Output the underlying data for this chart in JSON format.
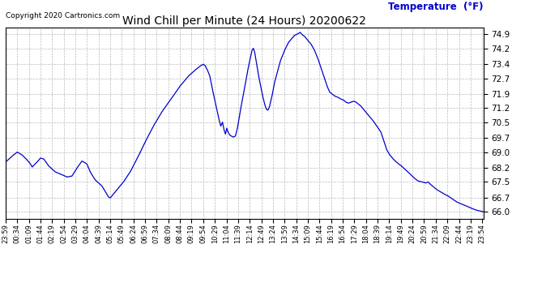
{
  "title": "Wind Chill per Minute (24 Hours) 20200622",
  "copyright_text": "Copyright 2020 Cartronics.com",
  "legend_label": "Temperature  (°F)",
  "background_color": "#ffffff",
  "line_color": "#0000cc",
  "title_color": "#000000",
  "legend_color": "#0000cc",
  "copyright_color": "#000000",
  "ylim": [
    65.65,
    75.25
  ],
  "yticks": [
    66.0,
    66.7,
    67.5,
    68.2,
    69.0,
    69.7,
    70.5,
    71.2,
    71.9,
    72.7,
    73.4,
    74.2,
    74.9
  ],
  "xtick_labels": [
    "23:59",
    "00:34",
    "01:09",
    "01:44",
    "02:19",
    "02:54",
    "03:29",
    "04:04",
    "04:39",
    "05:14",
    "05:49",
    "06:24",
    "06:59",
    "07:34",
    "08:09",
    "08:44",
    "09:19",
    "09:54",
    "10:29",
    "11:04",
    "11:39",
    "12:14",
    "12:49",
    "13:24",
    "13:59",
    "14:34",
    "15:09",
    "15:44",
    "16:19",
    "16:54",
    "17:29",
    "18:04",
    "18:39",
    "19:14",
    "19:49",
    "20:24",
    "20:59",
    "21:34",
    "22:09",
    "22:44",
    "23:19",
    "23:54"
  ],
  "grid_color": "#bbbbbb",
  "grid_style": "--",
  "grid_linewidth": 0.5,
  "waypoints": [
    [
      0,
      68.5
    ],
    [
      20,
      68.8
    ],
    [
      35,
      69.0
    ],
    [
      50,
      68.85
    ],
    [
      65,
      68.6
    ],
    [
      75,
      68.4
    ],
    [
      80,
      68.25
    ],
    [
      95,
      68.5
    ],
    [
      105,
      68.7
    ],
    [
      115,
      68.65
    ],
    [
      130,
      68.3
    ],
    [
      150,
      68.0
    ],
    [
      165,
      67.9
    ],
    [
      185,
      67.75
    ],
    [
      200,
      67.8
    ],
    [
      215,
      68.2
    ],
    [
      230,
      68.55
    ],
    [
      245,
      68.4
    ],
    [
      255,
      68.0
    ],
    [
      270,
      67.6
    ],
    [
      290,
      67.3
    ],
    [
      310,
      66.75
    ],
    [
      315,
      66.7
    ],
    [
      330,
      67.0
    ],
    [
      355,
      67.5
    ],
    [
      375,
      68.0
    ],
    [
      400,
      68.8
    ],
    [
      420,
      69.5
    ],
    [
      445,
      70.3
    ],
    [
      470,
      71.0
    ],
    [
      500,
      71.7
    ],
    [
      525,
      72.3
    ],
    [
      550,
      72.8
    ],
    [
      570,
      73.1
    ],
    [
      585,
      73.3
    ],
    [
      595,
      73.4
    ],
    [
      600,
      73.35
    ],
    [
      608,
      73.1
    ],
    [
      615,
      72.8
    ],
    [
      622,
      72.2
    ],
    [
      630,
      71.6
    ],
    [
      638,
      71.0
    ],
    [
      643,
      70.6
    ],
    [
      648,
      70.3
    ],
    [
      653,
      70.5
    ],
    [
      658,
      70.1
    ],
    [
      662,
      69.9
    ],
    [
      666,
      70.2
    ],
    [
      670,
      70.0
    ],
    [
      675,
      69.85
    ],
    [
      680,
      69.8
    ],
    [
      685,
      69.75
    ],
    [
      692,
      69.8
    ],
    [
      698,
      70.2
    ],
    [
      706,
      71.0
    ],
    [
      715,
      71.8
    ],
    [
      722,
      72.4
    ],
    [
      728,
      73.0
    ],
    [
      734,
      73.5
    ],
    [
      738,
      73.8
    ],
    [
      742,
      74.1
    ],
    [
      746,
      74.2
    ],
    [
      750,
      74.0
    ],
    [
      754,
      73.6
    ],
    [
      758,
      73.2
    ],
    [
      762,
      72.8
    ],
    [
      768,
      72.3
    ],
    [
      774,
      71.8
    ],
    [
      780,
      71.4
    ],
    [
      785,
      71.15
    ],
    [
      790,
      71.1
    ],
    [
      795,
      71.3
    ],
    [
      802,
      71.8
    ],
    [
      810,
      72.5
    ],
    [
      818,
      73.0
    ],
    [
      828,
      73.6
    ],
    [
      840,
      74.1
    ],
    [
      852,
      74.5
    ],
    [
      862,
      74.7
    ],
    [
      870,
      74.85
    ],
    [
      877,
      74.9
    ],
    [
      882,
      74.95
    ],
    [
      887,
      75.0
    ],
    [
      892,
      74.9
    ],
    [
      900,
      74.8
    ],
    [
      910,
      74.6
    ],
    [
      920,
      74.4
    ],
    [
      930,
      74.1
    ],
    [
      940,
      73.7
    ],
    [
      950,
      73.2
    ],
    [
      960,
      72.7
    ],
    [
      968,
      72.3
    ],
    [
      976,
      72.0
    ],
    [
      984,
      71.9
    ],
    [
      992,
      71.8
    ],
    [
      1000,
      71.75
    ],
    [
      1010,
      71.65
    ],
    [
      1018,
      71.6
    ],
    [
      1025,
      71.5
    ],
    [
      1032,
      71.45
    ],
    [
      1040,
      71.5
    ],
    [
      1048,
      71.55
    ],
    [
      1055,
      71.5
    ],
    [
      1063,
      71.4
    ],
    [
      1070,
      71.3
    ],
    [
      1080,
      71.1
    ],
    [
      1092,
      70.85
    ],
    [
      1105,
      70.6
    ],
    [
      1118,
      70.3
    ],
    [
      1130,
      70.0
    ],
    [
      1140,
      69.5
    ],
    [
      1148,
      69.1
    ],
    [
      1155,
      68.9
    ],
    [
      1162,
      68.75
    ],
    [
      1170,
      68.6
    ],
    [
      1180,
      68.45
    ],
    [
      1192,
      68.3
    ],
    [
      1205,
      68.1
    ],
    [
      1218,
      67.9
    ],
    [
      1230,
      67.7
    ],
    [
      1242,
      67.55
    ],
    [
      1255,
      67.5
    ],
    [
      1265,
      67.45
    ],
    [
      1272,
      67.5
    ],
    [
      1278,
      67.4
    ],
    [
      1285,
      67.3
    ],
    [
      1292,
      67.2
    ],
    [
      1300,
      67.1
    ],
    [
      1310,
      67.0
    ],
    [
      1320,
      66.9
    ],
    [
      1332,
      66.8
    ],
    [
      1345,
      66.65
    ],
    [
      1358,
      66.5
    ],
    [
      1372,
      66.4
    ],
    [
      1386,
      66.3
    ],
    [
      1400,
      66.2
    ],
    [
      1415,
      66.1
    ],
    [
      1428,
      66.05
    ],
    [
      1439,
      66.0
    ]
  ]
}
